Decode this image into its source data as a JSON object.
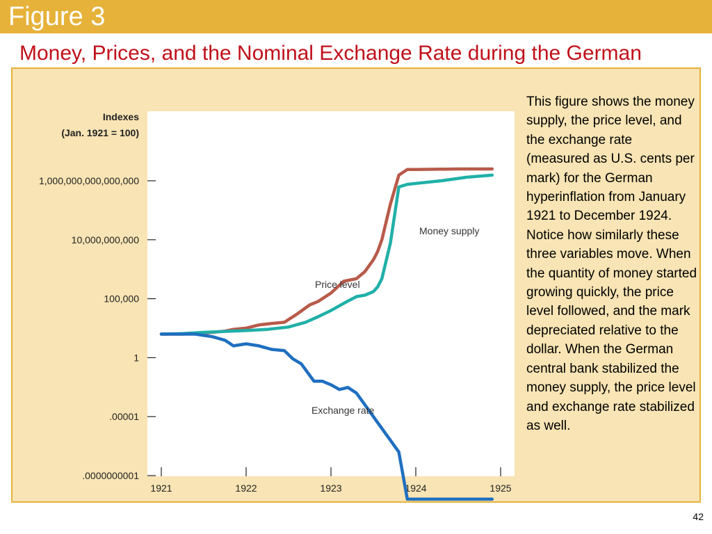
{
  "slide": {
    "figure_label": "Figure 3",
    "title": "Money, Prices, and the Nominal Exchange Rate during the German Hyperinflation",
    "description": "This figure shows the money supply, the price level, and the exchange rate (measured as U.S. cents per mark) for the German hyperinflation from January 1921 to December 1924. Notice how similarly these three variables move. When the quantity of money started growing quickly, the price level followed, and the mark depreciated relative to the dollar. When the German central bank stabilized the money supply, the price level and exchange rate stabilized as well.",
    "page_number": "42"
  },
  "colors": {
    "header_bar": "#e6b23a",
    "title_text": "#c0101a",
    "panel_bg": "#f8e4b4",
    "price_level": "#b85a4a",
    "money_supply": "#1fb0a8",
    "exchange_rate": "#1f6fc0"
  },
  "chart_data": {
    "type": "line",
    "ylabel_lines": [
      "Indexes",
      "(Jan. 1921 = 100)"
    ],
    "y_scale": "log",
    "y_ticks": [
      {
        "value": 1e-10,
        "label": ".0000000001"
      },
      {
        "value": 1e-05,
        "label": ".00001"
      },
      {
        "value": 1,
        "label": "1"
      },
      {
        "value": 100000.0,
        "label": "100,000"
      },
      {
        "value": 10000000000.0,
        "label": "10,000,000,000"
      },
      {
        "value": 1000000000000000.0,
        "label": "1,000,000,000,000,000"
      }
    ],
    "x_ticks": [
      1921,
      1922,
      1923,
      1924,
      1925
    ],
    "xlim": [
      1921,
      1925
    ],
    "series": [
      {
        "name": "Price level",
        "color": "#b85a4a",
        "x": [
          1921.0,
          1921.25,
          1921.5,
          1921.75,
          1921.85,
          1922.0,
          1922.15,
          1922.3,
          1922.45,
          1922.6,
          1922.75,
          1922.85,
          1923.0,
          1923.15,
          1923.3,
          1923.4,
          1923.5,
          1923.55,
          1923.6,
          1923.7,
          1923.8,
          1923.9,
          1924.0,
          1924.5,
          1924.9
        ],
        "y": [
          100,
          100,
          120,
          180,
          250,
          320,
          600,
          800,
          1000,
          5000,
          30000,
          60000,
          300000,
          3000000,
          5000000,
          20000000,
          200000000,
          1000000000,
          10000000000,
          10000000000000,
          3000000000000000,
          9000000000000000,
          9000000000000000,
          10000000000000000,
          10000000000000000
        ]
      },
      {
        "name": "Money supply",
        "color": "#1fb0a8",
        "x": [
          1921.0,
          1921.25,
          1921.5,
          1921.75,
          1922.0,
          1922.25,
          1922.5,
          1922.7,
          1922.85,
          1923.0,
          1923.15,
          1923.3,
          1923.4,
          1923.5,
          1923.55,
          1923.6,
          1923.7,
          1923.8,
          1923.9,
          1924.0,
          1924.3,
          1924.6,
          1924.9
        ],
        "y": [
          100,
          110,
          140,
          170,
          200,
          250,
          400,
          1000,
          3000,
          10000,
          40000,
          150000,
          200000,
          400000,
          1000000,
          5000000,
          5000000000,
          300000000000000,
          500000000000000,
          600000000000000,
          1000000000000000,
          2000000000000000,
          3000000000000000
        ]
      },
      {
        "name": "Exchange rate",
        "color": "#1f6fc0",
        "x": [
          1921.0,
          1921.2,
          1921.4,
          1921.6,
          1921.75,
          1921.85,
          1922.0,
          1922.15,
          1922.3,
          1922.45,
          1922.55,
          1922.65,
          1922.8,
          1922.9,
          1923.0,
          1923.1,
          1923.2,
          1923.3,
          1923.4,
          1923.5,
          1923.6,
          1923.7,
          1923.8,
          1923.9,
          1924.0,
          1924.3,
          1924.6,
          1924.9
        ],
        "y": [
          100,
          100,
          100,
          60,
          30,
          10,
          15,
          10,
          5,
          4,
          0.8,
          0.3,
          0.01,
          0.01,
          0.005,
          0.002,
          0.003,
          0.001,
          0.0001,
          1e-05,
          1e-06,
          1e-07,
          1e-08,
          1e-12,
          1e-12,
          1e-12,
          1e-12,
          1e-12
        ]
      }
    ],
    "annotations": [
      {
        "text": "Money supply",
        "series": "Money supply"
      },
      {
        "text": "Price level",
        "series": "Price level"
      },
      {
        "text": "Exchange rate",
        "series": "Exchange rate"
      }
    ]
  }
}
